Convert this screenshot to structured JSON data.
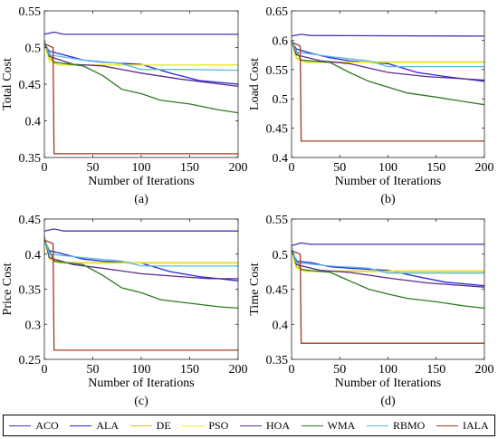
{
  "chart_data": [
    {
      "type": "line",
      "panel": "(a)",
      "xlabel": "Number of Iterations",
      "ylabel": "Total Cost",
      "xlim": [
        0,
        200
      ],
      "ylim": [
        0.35,
        0.55
      ],
      "xticks": [
        0,
        50,
        100,
        150,
        200
      ],
      "yticks": [
        0.35,
        0.4,
        0.45,
        0.5,
        0.55
      ],
      "ytick_labels": [
        "0.35",
        "0.4",
        "0.45",
        "0.5",
        "0.55"
      ],
      "series": [
        {
          "name": "ACO",
          "x": [
            0,
            10,
            20,
            200
          ],
          "y": [
            0.518,
            0.521,
            0.518,
            0.518
          ]
        },
        {
          "name": "ALA",
          "x": [
            0,
            5,
            20,
            40,
            60,
            100,
            130,
            160,
            200
          ],
          "y": [
            0.505,
            0.495,
            0.49,
            0.483,
            0.48,
            0.477,
            0.465,
            0.455,
            0.45
          ]
        },
        {
          "name": "DE",
          "x": [
            0,
            5,
            15,
            200
          ],
          "y": [
            0.51,
            0.485,
            0.476,
            0.476
          ]
        },
        {
          "name": "PSO",
          "x": [
            0,
            5,
            15,
            200
          ],
          "y": [
            0.505,
            0.482,
            0.476,
            0.476
          ]
        },
        {
          "name": "HOA",
          "x": [
            0,
            5,
            30,
            60,
            100,
            140,
            170,
            200
          ],
          "y": [
            0.51,
            0.488,
            0.477,
            0.475,
            0.465,
            0.457,
            0.452,
            0.447
          ]
        },
        {
          "name": "WMA",
          "x": [
            0,
            10,
            40,
            60,
            80,
            100,
            120,
            150,
            180,
            200
          ],
          "y": [
            0.505,
            0.48,
            0.475,
            0.462,
            0.443,
            0.437,
            0.428,
            0.423,
            0.415,
            0.411
          ]
        },
        {
          "name": "RBMO",
          "x": [
            0,
            5,
            40,
            80,
            100,
            150,
            200
          ],
          "y": [
            0.51,
            0.49,
            0.483,
            0.478,
            0.47,
            0.47,
            0.469
          ]
        },
        {
          "name": "IALA",
          "x": [
            0,
            9,
            10,
            200
          ],
          "y": [
            0.505,
            0.5,
            0.355,
            0.355
          ]
        }
      ]
    },
    {
      "type": "line",
      "panel": "(b)",
      "xlabel": "Number of Iterations",
      "ylabel": "Load Cost",
      "xlim": [
        0,
        200
      ],
      "ylim": [
        0.4,
        0.65
      ],
      "xticks": [
        0,
        50,
        100,
        150,
        200
      ],
      "yticks": [
        0.4,
        0.45,
        0.5,
        0.55,
        0.6,
        0.65
      ],
      "ytick_labels": [
        "0.4",
        "0.45",
        "0.5",
        "0.55",
        "0.6",
        "0.65"
      ],
      "series": [
        {
          "name": "ACO",
          "x": [
            0,
            10,
            20,
            200
          ],
          "y": [
            0.607,
            0.61,
            0.608,
            0.607
          ]
        },
        {
          "name": "ALA",
          "x": [
            0,
            5,
            20,
            40,
            60,
            100,
            130,
            160,
            200
          ],
          "y": [
            0.598,
            0.585,
            0.578,
            0.57,
            0.565,
            0.56,
            0.545,
            0.538,
            0.53
          ]
        },
        {
          "name": "DE",
          "x": [
            0,
            5,
            15,
            200
          ],
          "y": [
            0.6,
            0.57,
            0.563,
            0.563
          ]
        },
        {
          "name": "PSO",
          "x": [
            0,
            5,
            15,
            200
          ],
          "y": [
            0.598,
            0.568,
            0.562,
            0.562
          ]
        },
        {
          "name": "HOA",
          "x": [
            0,
            5,
            30,
            60,
            100,
            140,
            170,
            200
          ],
          "y": [
            0.6,
            0.575,
            0.565,
            0.56,
            0.545,
            0.538,
            0.535,
            0.532
          ]
        },
        {
          "name": "WMA",
          "x": [
            0,
            10,
            40,
            60,
            80,
            100,
            120,
            150,
            180,
            200
          ],
          "y": [
            0.597,
            0.566,
            0.562,
            0.545,
            0.53,
            0.52,
            0.51,
            0.503,
            0.495,
            0.49
          ]
        },
        {
          "name": "RBMO",
          "x": [
            0,
            5,
            40,
            80,
            100,
            150,
            200
          ],
          "y": [
            0.6,
            0.58,
            0.572,
            0.565,
            0.555,
            0.555,
            0.555
          ]
        },
        {
          "name": "IALA",
          "x": [
            0,
            9,
            10,
            200
          ],
          "y": [
            0.597,
            0.59,
            0.428,
            0.428
          ]
        }
      ]
    },
    {
      "type": "line",
      "panel": "(c)",
      "xlabel": "Number of Iterations",
      "ylabel": "Price Cost",
      "xlim": [
        0,
        200
      ],
      "ylim": [
        0.25,
        0.45
      ],
      "xticks": [
        0,
        50,
        100,
        150,
        200
      ],
      "yticks": [
        0.25,
        0.3,
        0.35,
        0.4,
        0.45
      ],
      "ytick_labels": [
        "0.25",
        "0.3",
        "0.35",
        "0.4",
        "0.45"
      ],
      "series": [
        {
          "name": "ACO",
          "x": [
            0,
            10,
            20,
            200
          ],
          "y": [
            0.433,
            0.436,
            0.433,
            0.433
          ]
        },
        {
          "name": "ALA",
          "x": [
            0,
            5,
            20,
            40,
            60,
            100,
            130,
            160,
            200
          ],
          "y": [
            0.42,
            0.405,
            0.4,
            0.393,
            0.39,
            0.387,
            0.375,
            0.368,
            0.362
          ]
        },
        {
          "name": "DE",
          "x": [
            0,
            5,
            15,
            200
          ],
          "y": [
            0.425,
            0.395,
            0.388,
            0.388
          ]
        },
        {
          "name": "PSO",
          "x": [
            0,
            5,
            15,
            200
          ],
          "y": [
            0.42,
            0.393,
            0.387,
            0.387
          ]
        },
        {
          "name": "HOA",
          "x": [
            0,
            5,
            30,
            60,
            100,
            140,
            170,
            200
          ],
          "y": [
            0.425,
            0.395,
            0.385,
            0.38,
            0.372,
            0.368,
            0.365,
            0.365
          ]
        },
        {
          "name": "WMA",
          "x": [
            0,
            10,
            40,
            60,
            80,
            100,
            120,
            150,
            180,
            200
          ],
          "y": [
            0.42,
            0.39,
            0.385,
            0.37,
            0.352,
            0.345,
            0.335,
            0.33,
            0.325,
            0.323
          ]
        },
        {
          "name": "RBMO",
          "x": [
            0,
            5,
            40,
            80,
            100,
            150,
            200
          ],
          "y": [
            0.425,
            0.4,
            0.395,
            0.39,
            0.383,
            0.383,
            0.383
          ]
        },
        {
          "name": "IALA",
          "x": [
            0,
            9,
            10,
            200
          ],
          "y": [
            0.42,
            0.415,
            0.263,
            0.263
          ]
        }
      ]
    },
    {
      "type": "line",
      "panel": "(d)",
      "xlabel": "Number of Iterations",
      "ylabel": "Time Cost",
      "xlim": [
        0,
        200
      ],
      "ylim": [
        0.35,
        0.55
      ],
      "xticks": [
        0,
        50,
        100,
        150,
        200
      ],
      "yticks": [
        0.35,
        0.4,
        0.45,
        0.5,
        0.55
      ],
      "ytick_labels": [
        "0.35",
        "0.4",
        "0.45",
        "0.5",
        "0.55"
      ],
      "series": [
        {
          "name": "ACO",
          "x": [
            0,
            10,
            20,
            200
          ],
          "y": [
            0.512,
            0.516,
            0.514,
            0.514
          ]
        },
        {
          "name": "ALA",
          "x": [
            0,
            5,
            20,
            40,
            60,
            100,
            130,
            160,
            200
          ],
          "y": [
            0.505,
            0.49,
            0.488,
            0.482,
            0.48,
            0.477,
            0.468,
            0.46,
            0.455
          ]
        },
        {
          "name": "DE",
          "x": [
            0,
            5,
            15,
            200
          ],
          "y": [
            0.51,
            0.482,
            0.476,
            0.476
          ]
        },
        {
          "name": "PSO",
          "x": [
            0,
            5,
            15,
            200
          ],
          "y": [
            0.505,
            0.48,
            0.475,
            0.475
          ]
        },
        {
          "name": "HOA",
          "x": [
            0,
            5,
            30,
            60,
            100,
            140,
            170,
            200
          ],
          "y": [
            0.51,
            0.485,
            0.477,
            0.474,
            0.466,
            0.459,
            0.456,
            0.453
          ]
        },
        {
          "name": "WMA",
          "x": [
            0,
            10,
            40,
            60,
            80,
            100,
            120,
            150,
            180,
            200
          ],
          "y": [
            0.505,
            0.478,
            0.474,
            0.462,
            0.45,
            0.443,
            0.437,
            0.432,
            0.426,
            0.423
          ]
        },
        {
          "name": "RBMO",
          "x": [
            0,
            5,
            40,
            80,
            100,
            150,
            200
          ],
          "y": [
            0.51,
            0.488,
            0.483,
            0.48,
            0.473,
            0.473,
            0.473
          ]
        },
        {
          "name": "IALA",
          "x": [
            0,
            9,
            10,
            200
          ],
          "y": [
            0.505,
            0.5,
            0.373,
            0.373
          ]
        }
      ]
    }
  ],
  "legend": {
    "items": [
      {
        "name": "ACO",
        "color": "#4b2fb5"
      },
      {
        "name": "ALA",
        "color": "#2426d8"
      },
      {
        "name": "DE",
        "color": "#d8c21a"
      },
      {
        "name": "PSO",
        "color": "#e8ef1a"
      },
      {
        "name": "HOA",
        "color": "#5d2a8d"
      },
      {
        "name": "WMA",
        "color": "#2d7a1e"
      },
      {
        "name": "RBMO",
        "color": "#5bb8e6"
      },
      {
        "name": "IALA",
        "color": "#a33a1e"
      }
    ]
  }
}
